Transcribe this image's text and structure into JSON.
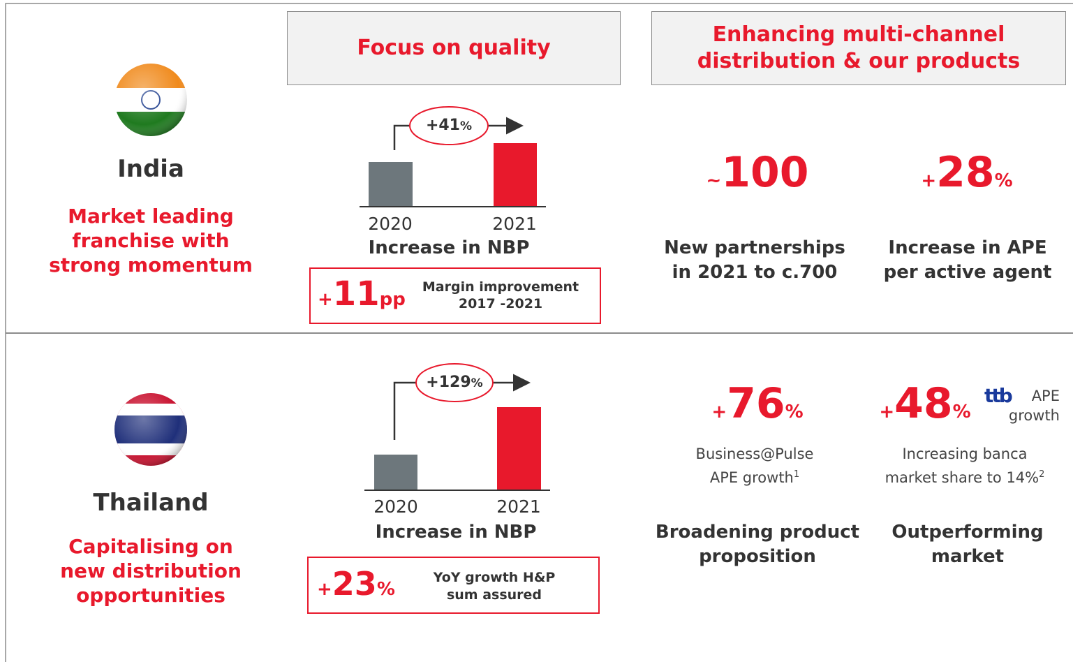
{
  "header": {
    "focus": "Focus on quality",
    "channel": [
      "Enhancing multi-channel",
      "distribution & our products"
    ]
  },
  "rows": [
    {
      "name": "India",
      "tagline": [
        "Market leading",
        "franchise with",
        "strong momentum"
      ],
      "chart": {
        "growth": "+41",
        "growth_unit": "%",
        "years": [
          "2020",
          "2021"
        ],
        "caption": "Increase in NBP"
      },
      "box": {
        "prefix": "+",
        "value": 11,
        "unit": "pp",
        "text": [
          "Margin improvement",
          "2017 -2021"
        ]
      },
      "stats": [
        {
          "prefix": "~",
          "value": 100,
          "unit": "",
          "desc": [
            "New partnerships",
            "in 2021 to c.700"
          ]
        },
        {
          "prefix": "+",
          "value": 28,
          "unit": "%",
          "desc": [
            "Increase in APE",
            "per active agent"
          ]
        }
      ]
    },
    {
      "name": "Thailand",
      "tagline": [
        "Capitalising on",
        "new distribution",
        "opportunities"
      ],
      "chart": {
        "growth": "+129",
        "growth_unit": "%",
        "years": [
          "2020",
          "2021"
        ],
        "caption": "Increase in NBP"
      },
      "box": {
        "prefix": "+",
        "value": 23,
        "unit": "%",
        "text": [
          "YoY growth H&P",
          "sum assured"
        ]
      },
      "stats": [
        {
          "prefix": "+",
          "value": 76,
          "unit": "%",
          "note": [
            "Business@Pulse",
            "APE growth"
          ],
          "sup": "1",
          "desc": [
            "Broadening product",
            "proposition"
          ]
        },
        {
          "prefix": "+",
          "value": 48,
          "unit": "%",
          "logo": "ttb",
          "logo_text": [
            "APE",
            "growth"
          ],
          "note": [
            "Increasing banca",
            "market share to 14%"
          ],
          "sup": "2",
          "desc": [
            "Outperforming",
            "market"
          ]
        }
      ]
    }
  ]
}
